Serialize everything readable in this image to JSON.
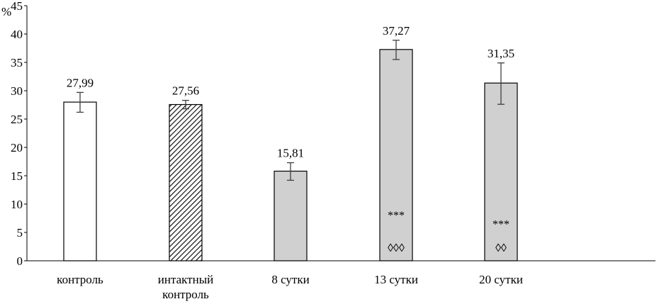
{
  "chart_data": {
    "type": "bar",
    "ylabel": "%",
    "ylim": [
      0,
      45
    ],
    "yticks": [
      0,
      5,
      10,
      15,
      20,
      25,
      30,
      35,
      40,
      45
    ],
    "grid": false,
    "categories": [
      [
        "контроль"
      ],
      [
        "интактный",
        "контроль"
      ],
      [
        "8 сутки"
      ],
      [
        "13 сутки"
      ],
      [
        "20 сутки"
      ]
    ],
    "values": [
      27.99,
      27.56,
      15.81,
      37.27,
      31.35
    ],
    "value_labels": [
      "27,99",
      "27,56",
      "15,81",
      "37,27",
      "31,35"
    ],
    "error_low": [
      26.2,
      26.8,
      14.2,
      35.5,
      27.6
    ],
    "error_high": [
      29.7,
      28.3,
      17.3,
      38.9,
      34.9
    ],
    "fills": [
      "white",
      "hatched",
      "gray",
      "gray",
      "gray"
    ],
    "annotations": [
      [],
      [],
      [],
      [
        {
          "text": "***",
          "y": 7.4
        },
        {
          "text": "◊◊◊",
          "y": 1.6
        }
      ],
      [
        {
          "text": "***",
          "y": 5.8
        },
        {
          "text": "◊◊",
          "y": 1.6
        }
      ]
    ],
    "colors": {
      "gray": "#d0d0d0",
      "border": "#000000",
      "error": "#404040"
    }
  }
}
